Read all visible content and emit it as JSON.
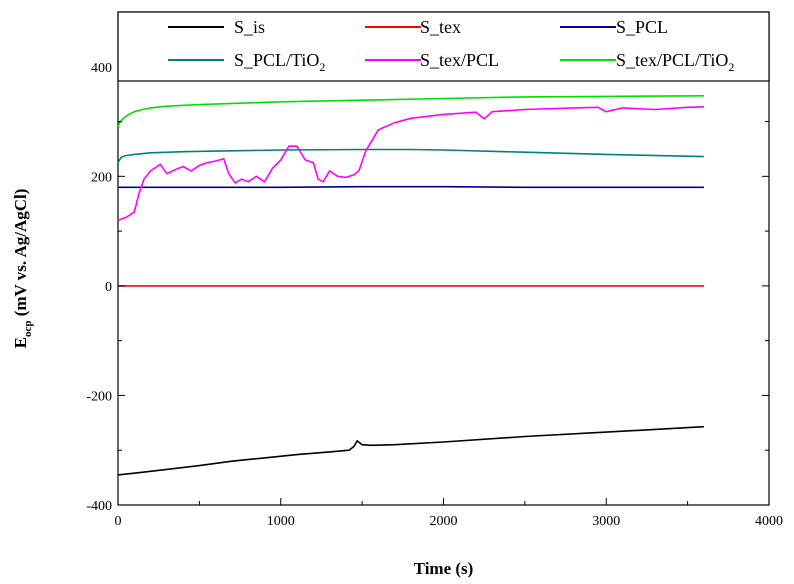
{
  "chart_data": {
    "type": "line",
    "title": "",
    "xlabel": "Time (s)",
    "ylabel_main": "E",
    "ylabel_sub": "ocp",
    "ylabel_rest": " (mV vs. Ag/AgCl)",
    "xlim": [
      0,
      4000
    ],
    "ylim": [
      -400,
      500
    ],
    "xticks": [
      0,
      1000,
      2000,
      3000,
      4000
    ],
    "xtick_labels": [
      "0",
      "1000",
      "2000",
      "3000",
      "4000"
    ],
    "yticks": [
      -400,
      -200,
      0,
      200,
      400
    ],
    "ytick_labels": [
      "-400",
      "-200",
      "0",
      "200",
      "400"
    ],
    "grid": false,
    "legend_position": "top",
    "series": [
      {
        "name": "S_is",
        "label_main": "S_is",
        "label_sub": "",
        "label_tail": "",
        "color": "#000000",
        "x": [
          0,
          100,
          300,
          500,
          700,
          900,
          1100,
          1300,
          1420,
          1450,
          1470,
          1500,
          1550,
          1700,
          2000,
          2500,
          3000,
          3600
        ],
        "y": [
          -345,
          -342,
          -335,
          -328,
          -320,
          -314,
          -308,
          -303,
          -300,
          -293,
          -283,
          -290,
          -291,
          -290,
          -285,
          -275,
          -267,
          -257
        ]
      },
      {
        "name": "S_tex",
        "label_main": "S_tex",
        "label_sub": "",
        "label_tail": "",
        "color": "#ff0000",
        "x": [
          0,
          3600
        ],
        "y": [
          0,
          0
        ]
      },
      {
        "name": "S_PCL",
        "label_main": "S_PCL",
        "label_sub": "",
        "label_tail": "",
        "color": "#00008b",
        "x": [
          0,
          500,
          1000,
          1500,
          2000,
          2500,
          3000,
          3600
        ],
        "y": [
          180,
          180,
          180,
          181,
          181,
          180,
          180,
          180
        ]
      },
      {
        "name": "S_PCL/TiO2",
        "label_main": "S_PCL/TiO",
        "label_sub": "2",
        "label_tail": "",
        "color": "#008080",
        "x": [
          0,
          20,
          50,
          100,
          200,
          400,
          600,
          800,
          1000,
          1500,
          1800,
          2000,
          2500,
          3000,
          3600
        ],
        "y": [
          225,
          235,
          238,
          240,
          243,
          245,
          246,
          247,
          248,
          249,
          249,
          248,
          244,
          240,
          236
        ]
      },
      {
        "name": "S_tex/PCL",
        "label_main": "S_tex/PCL",
        "label_sub": "",
        "label_tail": "",
        "color": "#ff00ff",
        "x": [
          0,
          50,
          100,
          130,
          160,
          200,
          260,
          300,
          350,
          400,
          450,
          500,
          550,
          600,
          650,
          680,
          720,
          760,
          800,
          850,
          900,
          950,
          1000,
          1050,
          1100,
          1150,
          1200,
          1230,
          1260,
          1300,
          1350,
          1400,
          1450,
          1480,
          1520,
          1560,
          1600,
          1700,
          1800,
          2000,
          2200,
          2250,
          2300,
          2500,
          2800,
          2950,
          3000,
          3100,
          3300,
          3500,
          3600
        ],
        "y": [
          120,
          125,
          135,
          170,
          195,
          210,
          222,
          205,
          212,
          218,
          210,
          220,
          225,
          228,
          232,
          205,
          188,
          195,
          190,
          200,
          190,
          215,
          230,
          255,
          255,
          230,
          225,
          195,
          190,
          210,
          200,
          198,
          203,
          210,
          245,
          265,
          285,
          298,
          306,
          313,
          317,
          305,
          318,
          322,
          325,
          326,
          318,
          325,
          322,
          326,
          327
        ]
      },
      {
        "name": "S_tex/PCL/TiO2",
        "label_main": "S_tex/PCL/TiO",
        "label_sub": "2",
        "label_tail": "",
        "color": "#00e000",
        "x": [
          0,
          10,
          30,
          60,
          100,
          150,
          200,
          300,
          500,
          800,
          1000,
          1500,
          2000,
          2500,
          3000,
          3600
        ],
        "y": [
          290,
          298,
          305,
          312,
          318,
          322,
          325,
          328,
          331,
          334,
          336,
          339,
          342,
          345,
          346,
          347
        ]
      }
    ]
  }
}
